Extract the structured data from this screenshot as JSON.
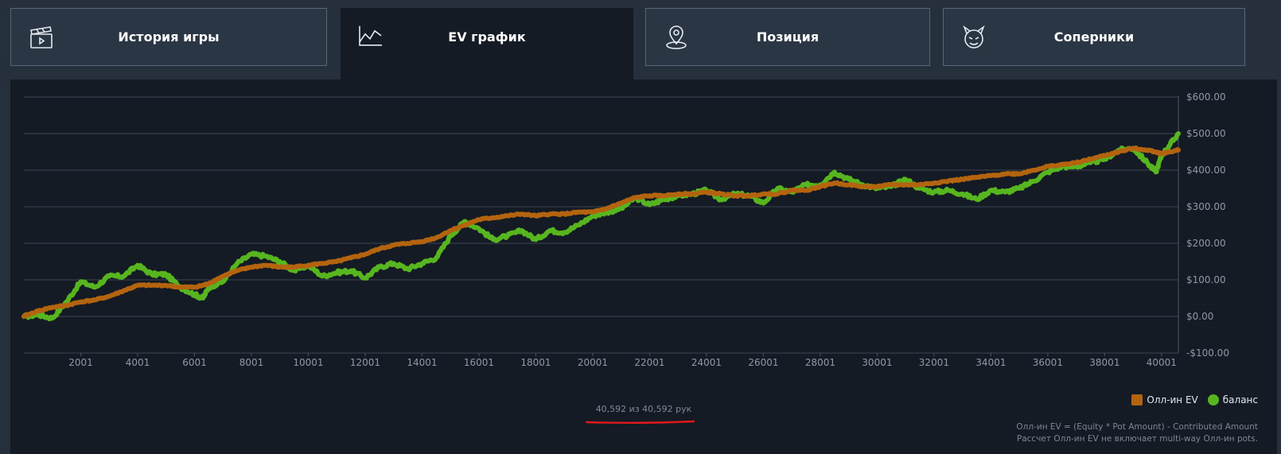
{
  "tabs": [
    {
      "label": "История игры",
      "icon": "clapperboard-icon",
      "active": false
    },
    {
      "label": "EV график",
      "icon": "line-chart-icon",
      "active": true
    },
    {
      "label": "Позиция",
      "icon": "map-pin-icon",
      "active": false
    },
    {
      "label": "Соперники",
      "icon": "devil-face-icon",
      "active": false
    }
  ],
  "colors": {
    "allin_ev": "#b4630f",
    "balance": "#57b51f",
    "grid": "#3a4554",
    "panel": "#151b24"
  },
  "hands_counter": "40,592 из 40,592 рук",
  "legend": {
    "allin_ev_label": "Олл-ин EV",
    "balance_label": "баланс"
  },
  "formula": {
    "line1": "Олл-ин EV = (Equity * Pot Amount) - Contributed Amount",
    "line2": "Рассчет Олл-ин EV не включает multi-way Олл-ин pots."
  },
  "chart_data": {
    "type": "line",
    "xlim": [
      1,
      40592
    ],
    "ylim": [
      -100,
      600
    ],
    "grid": true,
    "legend_position": "bottom-right",
    "x_ticks": [
      2001,
      4001,
      6001,
      8001,
      10001,
      12001,
      14001,
      16001,
      18001,
      20001,
      22001,
      24001,
      26001,
      28001,
      30001,
      32001,
      34001,
      36001,
      38001,
      40001
    ],
    "y_ticks": [
      600,
      500,
      400,
      300,
      200,
      100,
      0,
      -100
    ],
    "y_tick_labels": [
      "$600.00",
      "$500.00",
      "$400.00",
      "$300.00",
      "$200.00",
      "$100.00",
      "$0.00",
      "-$100.00"
    ],
    "x": [
      1,
      500,
      1000,
      1500,
      2001,
      2500,
      3000,
      3500,
      4001,
      4500,
      5000,
      5500,
      6001,
      6300,
      6500,
      7000,
      7500,
      8001,
      8500,
      9000,
      9500,
      10001,
      10500,
      11000,
      11500,
      12001,
      12500,
      13000,
      13500,
      14001,
      14500,
      15000,
      15500,
      16001,
      16500,
      17000,
      17500,
      18001,
      18500,
      19000,
      19500,
      20001,
      20500,
      21000,
      21500,
      22001,
      22500,
      23000,
      23500,
      24001,
      24500,
      25000,
      25500,
      26001,
      26500,
      27000,
      27500,
      28001,
      28500,
      29000,
      29500,
      30001,
      30500,
      31000,
      31500,
      32001,
      32500,
      33000,
      33500,
      34001,
      34500,
      35000,
      35500,
      36001,
      36500,
      37000,
      37500,
      38001,
      38500,
      39000,
      39500,
      39800,
      40001,
      40300,
      40592
    ],
    "series": [
      {
        "name": "Олл-ин EV",
        "values": [
          0,
          15,
          25,
          30,
          40,
          45,
          55,
          70,
          85,
          85,
          85,
          80,
          80,
          85,
          90,
          110,
          125,
          135,
          140,
          135,
          135,
          140,
          145,
          150,
          160,
          170,
          185,
          195,
          200,
          205,
          215,
          235,
          250,
          265,
          270,
          275,
          280,
          275,
          280,
          280,
          285,
          285,
          295,
          310,
          325,
          330,
          330,
          335,
          335,
          340,
          335,
          330,
          330,
          335,
          335,
          345,
          345,
          355,
          365,
          360,
          355,
          355,
          360,
          360,
          360,
          365,
          370,
          375,
          380,
          385,
          390,
          390,
          400,
          410,
          415,
          420,
          430,
          440,
          450,
          460,
          455,
          450,
          445,
          450,
          455
        ]
      },
      {
        "name": "баланс",
        "values": [
          0,
          5,
          -5,
          40,
          95,
          80,
          110,
          110,
          140,
          115,
          115,
          80,
          60,
          50,
          80,
          95,
          145,
          170,
          165,
          150,
          125,
          140,
          110,
          120,
          125,
          105,
          135,
          145,
          130,
          145,
          160,
          220,
          260,
          240,
          210,
          220,
          235,
          210,
          235,
          230,
          250,
          275,
          285,
          295,
          325,
          305,
          320,
          330,
          335,
          345,
          320,
          335,
          330,
          310,
          350,
          340,
          360,
          360,
          395,
          375,
          360,
          350,
          355,
          375,
          350,
          340,
          345,
          335,
          320,
          345,
          340,
          350,
          370,
          395,
          410,
          410,
          420,
          430,
          455,
          460,
          420,
          395,
          440,
          470,
          500
        ]
      }
    ]
  }
}
